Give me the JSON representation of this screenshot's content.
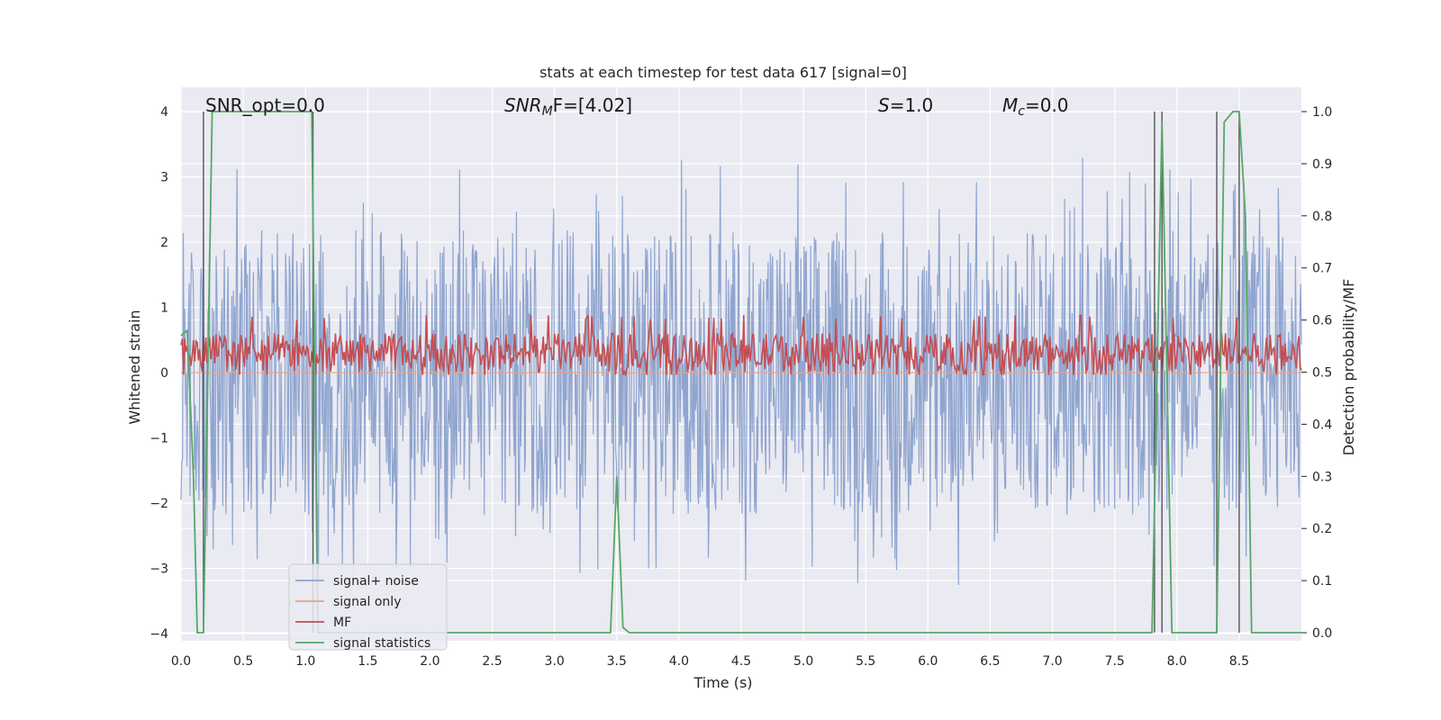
{
  "chart_data": {
    "type": "line",
    "title": "stats at each timestep for test data 617 [signal=0]",
    "xlabel": "Time (s)",
    "ylabel_left": "Whitened strain",
    "ylabel_right": "Detection probability/MF",
    "xlim": [
      0,
      9.0
    ],
    "ylim_left": [
      -4.0,
      4.4
    ],
    "ylim_right": [
      0,
      1.0
    ],
    "x_ticks": [
      0.0,
      0.5,
      1.0,
      1.5,
      2.0,
      2.5,
      3.0,
      3.5,
      4.0,
      4.5,
      5.0,
      5.5,
      6.0,
      6.5,
      7.0,
      7.5,
      8.0,
      8.5
    ],
    "x_tick_labels": [
      "0.0",
      "0.5",
      "1.0",
      "1.5",
      "2.0",
      "2.5",
      "3.0",
      "3.5",
      "4.0",
      "4.5",
      "5.0",
      "5.5",
      "6.0",
      "6.5",
      "7.0",
      "7.5",
      "8.0",
      "8.5"
    ],
    "y_left_ticks": [
      4,
      3,
      2,
      1,
      0,
      -1,
      -2,
      -3,
      -4
    ],
    "y_left_tick_labels": [
      "4",
      "3",
      "2",
      "1",
      "0",
      "−1",
      "−2",
      "−3",
      "−4"
    ],
    "y_right_ticks": [
      1.0,
      0.9,
      0.8,
      0.7,
      0.6,
      0.5,
      0.4,
      0.3,
      0.2,
      0.1,
      0.0
    ],
    "y_right_tick_labels": [
      "1.0",
      "0.9",
      "0.8",
      "0.7",
      "0.6",
      "0.5",
      "0.4",
      "0.3",
      "0.2",
      "0.1",
      "0.0"
    ],
    "grid": true,
    "legend_position": "lower-left",
    "annotations": {
      "snr_opt": "SNR_opt=0.0",
      "snr_mf_main": "SNR",
      "snr_mf_sub": "M",
      "snr_mf_rest": "F=[4.02]",
      "s_main": "S",
      "s_rest": "=1.0",
      "mc_main": "M",
      "mc_sub": "c",
      "mc_rest": "=0.0"
    },
    "series": [
      {
        "name": "signal+ noise",
        "color": "#8fa5cf",
        "axis": "left",
        "description_values": "noise band approximately between -2.3 and 2.3 with spikes up to about 3.4 and down to about -3.8",
        "amplitude_typical": 2.3,
        "amplitude_max": 3.4,
        "amplitude_min": -3.8
      },
      {
        "name": "signal only",
        "color": "#e8a287",
        "axis": "left",
        "values_constant": 0.0
      },
      {
        "name": "MF",
        "color": "#c44e52",
        "axis": "right",
        "band_low": 0.5,
        "band_high": 0.6
      },
      {
        "name": "signal statistics",
        "color": "#55a868",
        "axis": "right",
        "x": [
          0.0,
          0.05,
          0.1,
          0.13,
          0.18,
          0.25,
          0.3,
          1.0,
          1.05,
          1.1,
          1.2,
          1.5,
          3.0,
          3.45,
          3.5,
          3.55,
          3.6,
          4.0,
          7.5,
          7.8,
          7.88,
          7.96,
          8.0,
          8.32,
          8.38,
          8.45,
          8.5,
          8.55,
          8.6,
          8.7,
          9.0
        ],
        "values": [
          0.57,
          0.58,
          0.3,
          0.0,
          0.0,
          1.0,
          1.0,
          1.0,
          1.0,
          0.0,
          0.0,
          0.0,
          0.0,
          0.0,
          0.3,
          0.01,
          0.0,
          0.0,
          0.0,
          0.0,
          0.98,
          0.0,
          0.0,
          0.0,
          0.98,
          1.0,
          1.0,
          0.8,
          0.0,
          0.0,
          0.0
        ]
      }
    ],
    "vertical_markers": [
      0.18,
      1.06,
      7.82,
      7.88,
      8.32,
      8.5
    ]
  },
  "legend": {
    "items": [
      {
        "label": "signal+ noise",
        "color": "#8fa5cf"
      },
      {
        "label": "signal only",
        "color": "#e8a287"
      },
      {
        "label": "MF",
        "color": "#c44e52"
      },
      {
        "label": "signal statistics",
        "color": "#55a868"
      }
    ]
  },
  "colors": {
    "plot_background": "#eaeaf2",
    "grid": "#ffffff",
    "marker_lines": "#555555"
  }
}
